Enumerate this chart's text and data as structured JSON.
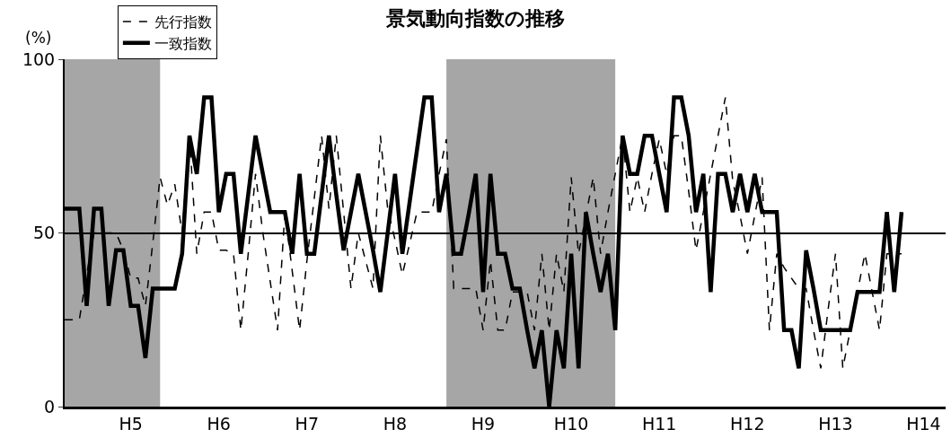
{
  "chart_data": {
    "type": "line",
    "title": "景気動向指数の推移",
    "ylabel": "(%)",
    "categories": [
      null,
      null,
      null,
      null,
      null,
      null,
      null,
      null,
      null,
      "H5",
      null,
      null,
      null,
      null,
      null,
      null,
      null,
      null,
      null,
      null,
      null,
      "H6",
      null,
      null,
      null,
      null,
      null,
      null,
      null,
      null,
      null,
      null,
      null,
      "H7",
      null,
      null,
      null,
      null,
      null,
      null,
      null,
      null,
      null,
      null,
      null,
      "H8",
      null,
      null,
      null,
      null,
      null,
      null,
      null,
      null,
      null,
      null,
      null,
      "H9",
      null,
      null,
      null,
      null,
      null,
      null,
      null,
      null,
      null,
      null,
      null,
      "H10",
      null,
      null,
      null,
      null,
      null,
      null,
      null,
      null,
      null,
      null,
      null,
      "H11",
      null,
      null,
      null,
      null,
      null,
      null,
      null,
      null,
      null,
      null,
      null,
      "H12",
      null,
      null,
      null,
      null,
      null,
      null,
      null,
      null,
      null,
      null,
      null,
      "H13",
      null,
      null,
      null,
      null,
      null,
      null,
      null,
      null,
      null,
      null,
      null,
      "H14",
      null,
      null,
      null
    ],
    "ylim": [
      0,
      100
    ],
    "yticks": [
      0,
      50,
      100
    ],
    "grid": "y",
    "legend": "top left",
    "marker": "none",
    "series": [
      {
        "name": "先行指数",
        "color": "#000000",
        "line_style": "dashed",
        "values": [
          25,
          25,
          25,
          38,
          50,
          50,
          50,
          50,
          45,
          37,
          37,
          29,
          47,
          66,
          58,
          64,
          50,
          78,
          44,
          56,
          56,
          45,
          45,
          44,
          22,
          44,
          67,
          50,
          36,
          22,
          56,
          39,
          22,
          42,
          60,
          78,
          57,
          78,
          56,
          34,
          50,
          42,
          34,
          78,
          57,
          48,
          38,
          47,
          56,
          56,
          56,
          67,
          77,
          34,
          34,
          34,
          34,
          22,
          42,
          22,
          22,
          33,
          33,
          33,
          22,
          44,
          22,
          44,
          33,
          66,
          44,
          55,
          66,
          44,
          56,
          67,
          78,
          56,
          66,
          56,
          67,
          77,
          67,
          78,
          78,
          62,
          45,
          56,
          67,
          78,
          89,
          65,
          55,
          44,
          55,
          66,
          22,
          44,
          40,
          37,
          34,
          34,
          22,
          11,
          28,
          44,
          11,
          22,
          33,
          44,
          33,
          22,
          44,
          44,
          44,
          null,
          null,
          null,
          null,
          null,
          null
        ]
      },
      {
        "name": "一致指数",
        "color": "#000000",
        "line_style": "solid",
        "values": [
          57,
          57,
          57,
          29,
          57,
          57,
          29,
          45,
          45,
          29,
          29,
          14,
          34,
          34,
          34,
          34,
          44,
          78,
          67,
          89,
          89,
          56,
          67,
          67,
          44,
          61,
          78,
          67,
          56,
          56,
          56,
          44,
          67,
          44,
          44,
          61,
          78,
          61,
          45,
          56,
          67,
          56,
          45,
          33,
          50,
          67,
          44,
          59,
          74,
          89,
          89,
          56,
          67,
          44,
          44,
          55,
          67,
          33,
          67,
          44,
          44,
          34,
          34,
          22,
          11,
          22,
          0,
          22,
          11,
          44,
          11,
          56,
          44,
          33,
          44,
          22,
          78,
          67,
          67,
          78,
          78,
          67,
          56,
          89,
          89,
          78,
          56,
          67,
          33,
          67,
          67,
          56,
          67,
          56,
          67,
          56,
          56,
          56,
          22,
          22,
          11,
          45,
          34,
          22,
          22,
          22,
          22,
          22,
          33,
          33,
          33,
          33,
          56,
          33,
          56,
          null,
          null,
          null,
          null,
          null,
          null
        ]
      }
    ]
  }
}
